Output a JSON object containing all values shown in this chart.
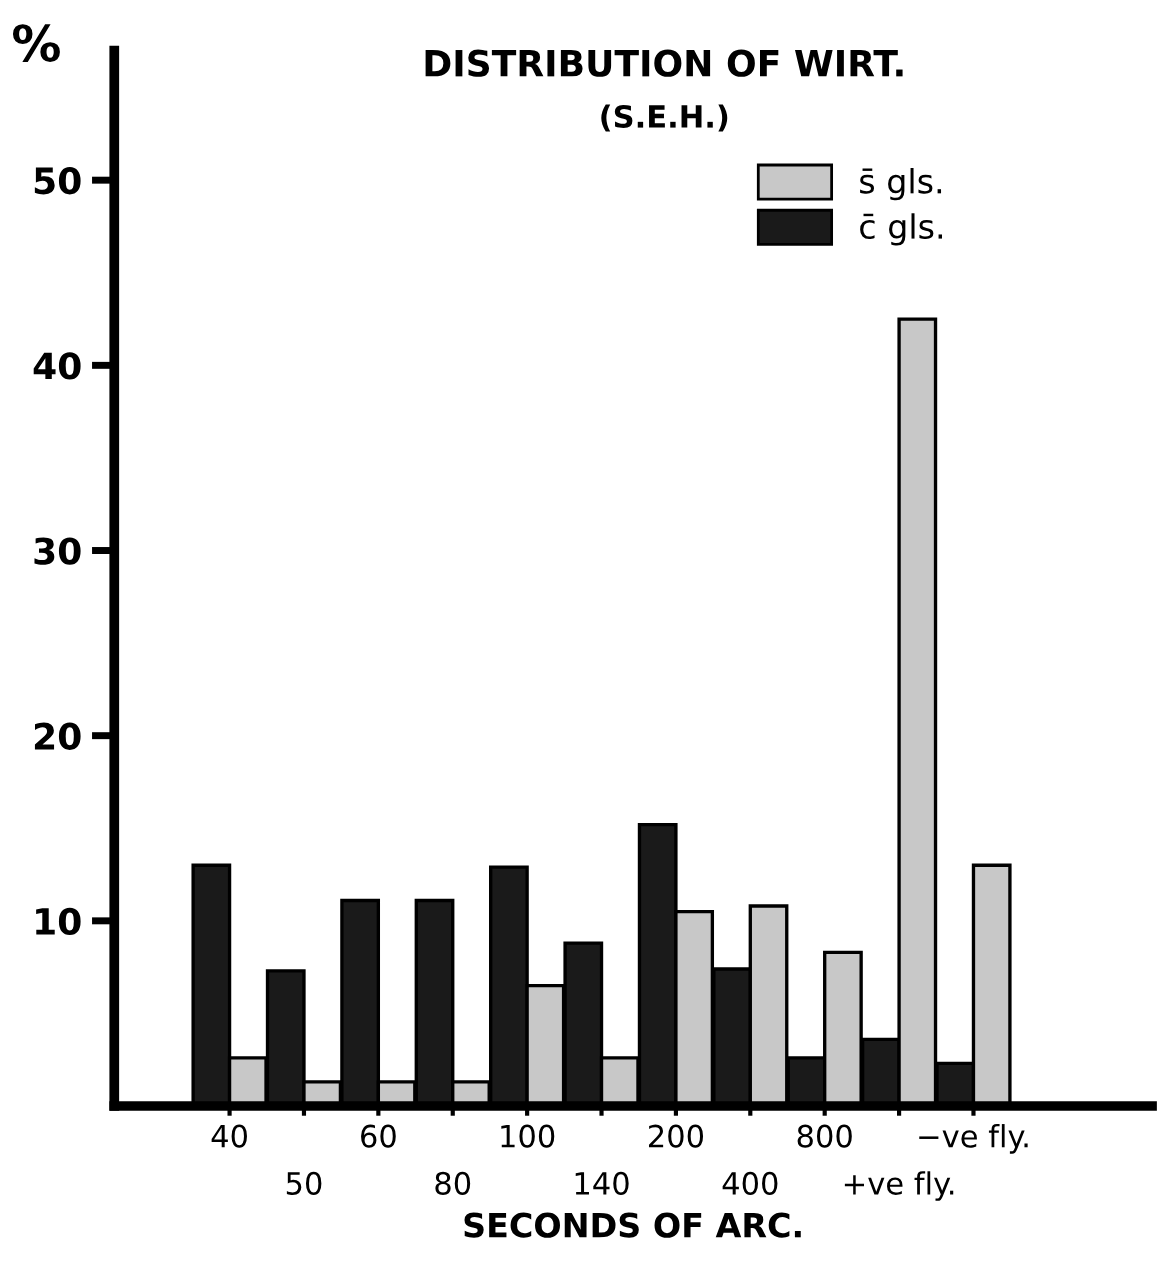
{
  "chart_data": {
    "type": "bar",
    "title": "DISTRIBUTION OF WIRT.",
    "subtitle": "(S.E.H.)",
    "xlabel": "SECONDS OF ARC.",
    "ylabel": "%",
    "categories": [
      "40",
      "50",
      "60",
      "80",
      "100",
      "140",
      "200",
      "400",
      "800",
      "+ve fly.",
      "−ve fly."
    ],
    "series": [
      {
        "name": "c̄ gls.",
        "color": "#1a1a1a",
        "values": [
          13.0,
          7.3,
          11.1,
          11.1,
          12.9,
          8.8,
          15.2,
          7.4,
          2.6,
          3.6,
          2.3
        ]
      },
      {
        "name": "s̄ gls.",
        "color": "#c8c8c8",
        "values": [
          2.6,
          1.3,
          1.3,
          1.3,
          6.5,
          2.6,
          10.5,
          10.8,
          8.3,
          42.5,
          13.0
        ]
      }
    ],
    "ylim": [
      0,
      57
    ],
    "yticks": [
      10,
      20,
      30,
      40,
      50
    ],
    "grid": false,
    "legend": "top right"
  }
}
